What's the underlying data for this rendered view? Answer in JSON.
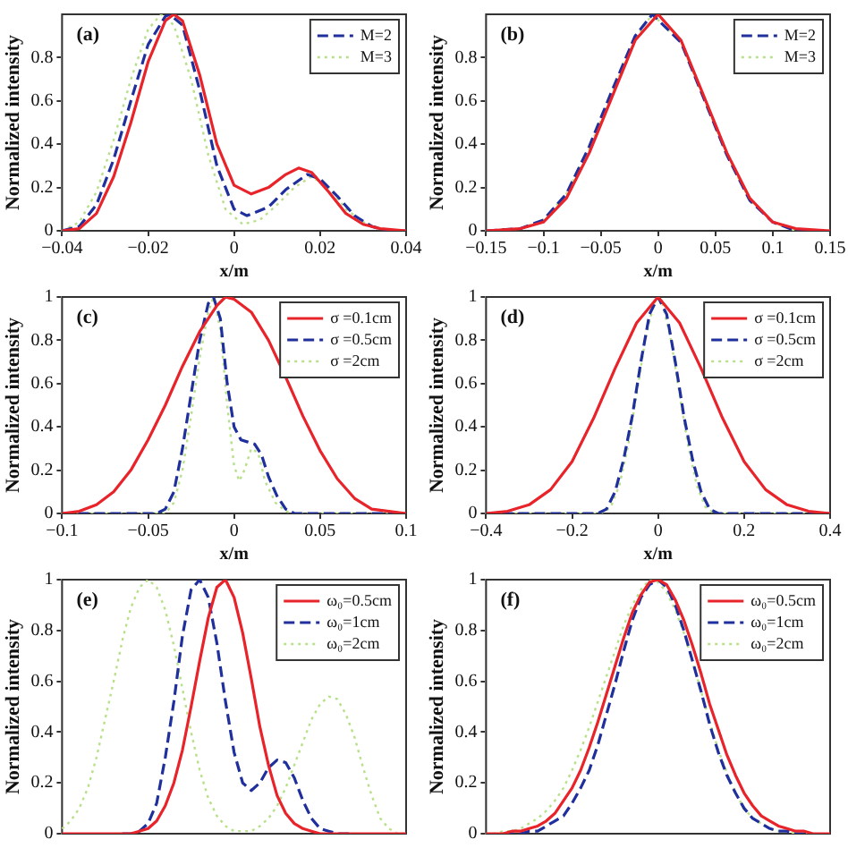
{
  "chart_data": [
    {
      "type": "line",
      "annotations": [
        "(a)"
      ],
      "xlabel": "x/m",
      "ylabel": "Normalized intensity",
      "xlim": [
        -0.04,
        0.04
      ],
      "xticks": [
        -0.04,
        -0.02,
        0,
        0.02,
        0.04
      ],
      "ylim": [
        0,
        1
      ],
      "yticks": [
        0,
        0.2,
        0.4,
        0.6,
        0.8
      ],
      "legend": "top right",
      "series": [
        {
          "color": "#e8232a",
          "line_style": "solid",
          "x": [
            -0.04,
            -0.036,
            -0.032,
            -0.028,
            -0.024,
            -0.02,
            -0.016,
            -0.014,
            -0.012,
            -0.008,
            -0.004,
            0,
            0.004,
            0.008,
            0.012,
            0.015,
            0.018,
            0.022,
            0.026,
            0.03,
            0.034,
            0.04
          ],
          "values": [
            0,
            0.01,
            0.08,
            0.25,
            0.5,
            0.78,
            0.97,
            1,
            0.97,
            0.72,
            0.4,
            0.21,
            0.17,
            0.2,
            0.26,
            0.29,
            0.27,
            0.18,
            0.08,
            0.03,
            0.01,
            0
          ]
        },
        {
          "name": "M=2",
          "color": "#1f2f9c",
          "line_style": "dashed",
          "x": [
            -0.04,
            -0.036,
            -0.032,
            -0.028,
            -0.024,
            -0.02,
            -0.016,
            -0.015,
            -0.012,
            -0.008,
            -0.004,
            0,
            0.003,
            0.008,
            0.012,
            0.017,
            0.02,
            0.024,
            0.028,
            0.032,
            0.036,
            0.04
          ],
          "values": [
            0,
            0.02,
            0.12,
            0.33,
            0.6,
            0.86,
            0.99,
            1,
            0.95,
            0.65,
            0.3,
            0.1,
            0.07,
            0.11,
            0.19,
            0.26,
            0.24,
            0.16,
            0.07,
            0.02,
            0,
            0
          ]
        },
        {
          "name": "M=3",
          "color": "#b8e08a",
          "line_style": "dotted",
          "x": [
            -0.04,
            -0.036,
            -0.032,
            -0.028,
            -0.024,
            -0.02,
            -0.017,
            -0.014,
            -0.01,
            -0.006,
            -0.002,
            0.002,
            0.006,
            0.01,
            0.014,
            0.018,
            0.022,
            0.026,
            0.03,
            0.034,
            0.04
          ],
          "values": [
            0,
            0.04,
            0.18,
            0.42,
            0.7,
            0.93,
            1,
            0.95,
            0.7,
            0.35,
            0.1,
            0.03,
            0.05,
            0.12,
            0.2,
            0.25,
            0.2,
            0.1,
            0.04,
            0.01,
            0
          ]
        }
      ]
    },
    {
      "type": "line",
      "annotations": [
        "(b)"
      ],
      "xlabel": "x/m",
      "ylabel": "Normalized intensity",
      "xlim": [
        -0.15,
        0.15
      ],
      "xticks": [
        -0.15,
        -0.1,
        -0.05,
        0,
        0.05,
        0.1,
        0.15
      ],
      "ylim": [
        0,
        1
      ],
      "yticks": [
        0,
        0.2,
        0.4,
        0.6,
        0.8
      ],
      "legend": "top right",
      "series": [
        {
          "color": "#e8232a",
          "line_style": "solid",
          "x": [
            -0.15,
            -0.12,
            -0.1,
            -0.08,
            -0.06,
            -0.04,
            -0.02,
            0,
            0.02,
            0.04,
            0.06,
            0.08,
            0.1,
            0.12,
            0.15
          ],
          "values": [
            0,
            0.01,
            0.04,
            0.15,
            0.36,
            0.62,
            0.88,
            1,
            0.88,
            0.62,
            0.36,
            0.15,
            0.04,
            0.01,
            0
          ]
        },
        {
          "name": "M=2",
          "color": "#1f2f9c",
          "line_style": "dashed",
          "x": [
            -0.15,
            -0.12,
            -0.1,
            -0.08,
            -0.06,
            -0.04,
            -0.02,
            -0.005,
            0.02,
            0.04,
            0.06,
            0.08,
            0.1,
            0.12,
            0.15
          ],
          "values": [
            0,
            0.01,
            0.05,
            0.17,
            0.39,
            0.65,
            0.9,
            1,
            0.87,
            0.61,
            0.35,
            0.14,
            0.04,
            0,
            0
          ]
        },
        {
          "name": "M=3",
          "color": "#b8e08a",
          "line_style": "dotted",
          "x": [
            -0.15,
            -0.12,
            -0.1,
            -0.08,
            -0.06,
            -0.04,
            -0.02,
            -0.005,
            0.02,
            0.04,
            0.06,
            0.08,
            0.1,
            0.12,
            0.15
          ],
          "values": [
            0,
            0.01,
            0.05,
            0.17,
            0.38,
            0.64,
            0.89,
            1,
            0.87,
            0.61,
            0.35,
            0.14,
            0.04,
            0,
            0
          ]
        }
      ]
    },
    {
      "type": "line",
      "annotations": [
        "(c)"
      ],
      "xlabel": "x/m",
      "ylabel": "Normalized intensity",
      "xlim": [
        -0.1,
        0.1
      ],
      "xticks": [
        -0.1,
        -0.05,
        0,
        0.05,
        0.1
      ],
      "ylim": [
        0,
        1
      ],
      "yticks": [
        0,
        0.2,
        0.4,
        0.6,
        0.8,
        1
      ],
      "legend": "top right",
      "series": [
        {
          "name": "σ =0.1cm",
          "color": "#e8232a",
          "line_style": "solid",
          "x": [
            -0.1,
            -0.09,
            -0.08,
            -0.07,
            -0.06,
            -0.05,
            -0.04,
            -0.03,
            -0.02,
            -0.01,
            -0.005,
            0,
            0.01,
            0.02,
            0.03,
            0.04,
            0.05,
            0.06,
            0.07,
            0.08,
            0.09,
            0.1
          ],
          "values": [
            0,
            0.01,
            0.04,
            0.1,
            0.2,
            0.34,
            0.5,
            0.68,
            0.84,
            0.96,
            1,
            0.99,
            0.93,
            0.8,
            0.63,
            0.45,
            0.29,
            0.16,
            0.07,
            0.02,
            0.01,
            0
          ]
        },
        {
          "name": "σ =0.5cm",
          "color": "#1f2f9c",
          "line_style": "dashed",
          "x": [
            -0.1,
            -0.045,
            -0.04,
            -0.035,
            -0.03,
            -0.025,
            -0.02,
            -0.015,
            -0.012,
            -0.008,
            -0.004,
            0,
            0.004,
            0.008,
            0.012,
            0.016,
            0.02,
            0.025,
            0.03,
            0.035,
            0.1
          ],
          "values": [
            0,
            0,
            0.02,
            0.1,
            0.3,
            0.55,
            0.8,
            0.97,
            1,
            0.9,
            0.6,
            0.4,
            0.34,
            0.33,
            0.32,
            0.27,
            0.17,
            0.08,
            0.02,
            0,
            0
          ]
        },
        {
          "name": "σ =2cm",
          "color": "#b8e08a",
          "line_style": "dotted",
          "x": [
            -0.1,
            -0.04,
            -0.035,
            -0.03,
            -0.025,
            -0.02,
            -0.015,
            -0.012,
            -0.008,
            -0.004,
            0,
            0.003,
            0.006,
            0.01,
            0.014,
            0.018,
            0.024,
            0.03,
            0.035,
            0.1
          ],
          "values": [
            0,
            0,
            0.05,
            0.2,
            0.45,
            0.72,
            0.93,
            1,
            0.85,
            0.5,
            0.22,
            0.15,
            0.2,
            0.3,
            0.28,
            0.15,
            0.05,
            0.01,
            0,
            0
          ]
        }
      ]
    },
    {
      "type": "line",
      "annotations": [
        "(d)"
      ],
      "xlabel": "x/m",
      "ylabel": "Normalized intensity",
      "xlim": [
        -0.4,
        0.4
      ],
      "xticks": [
        -0.4,
        -0.2,
        0,
        0.2,
        0.4
      ],
      "ylim": [
        0,
        1
      ],
      "yticks": [
        0,
        0.2,
        0.4,
        0.6,
        0.8,
        1
      ],
      "legend": "top right",
      "series": [
        {
          "name": "σ =0.1cm",
          "color": "#e8232a",
          "line_style": "solid",
          "x": [
            -0.4,
            -0.35,
            -0.3,
            -0.25,
            -0.2,
            -0.15,
            -0.1,
            -0.05,
            0,
            0.05,
            0.1,
            0.15,
            0.2,
            0.25,
            0.3,
            0.35,
            0.4
          ],
          "values": [
            0,
            0.01,
            0.04,
            0.11,
            0.24,
            0.44,
            0.67,
            0.88,
            1,
            0.88,
            0.67,
            0.44,
            0.24,
            0.11,
            0.04,
            0.01,
            0
          ]
        },
        {
          "name": "σ =0.5cm",
          "color": "#1f2f9c",
          "line_style": "dashed",
          "x": [
            -0.4,
            -0.14,
            -0.12,
            -0.1,
            -0.08,
            -0.06,
            -0.04,
            -0.02,
            0,
            0.02,
            0.04,
            0.06,
            0.08,
            0.1,
            0.12,
            0.14,
            0.4
          ],
          "values": [
            0,
            0,
            0.02,
            0.1,
            0.25,
            0.45,
            0.7,
            0.92,
            1,
            0.92,
            0.7,
            0.45,
            0.25,
            0.1,
            0.02,
            0,
            0
          ]
        },
        {
          "name": "σ =2cm",
          "color": "#b8e08a",
          "line_style": "dotted",
          "x": [
            -0.4,
            -0.13,
            -0.11,
            -0.09,
            -0.07,
            -0.05,
            -0.03,
            -0.01,
            0,
            0.01,
            0.03,
            0.05,
            0.07,
            0.09,
            0.11,
            0.13,
            0.4
          ],
          "values": [
            0,
            0,
            0.03,
            0.13,
            0.31,
            0.55,
            0.8,
            0.97,
            1,
            0.97,
            0.8,
            0.55,
            0.31,
            0.13,
            0.03,
            0,
            0
          ]
        }
      ]
    },
    {
      "type": "line",
      "annotations": [
        "(e)"
      ],
      "ylabel": "Normalized intensity",
      "tick_labels": "y",
      "ylim": [
        0,
        1
      ],
      "yticks": [
        0,
        0.2,
        0.4,
        0.6,
        0.8,
        1
      ],
      "legend": "top right",
      "categories": [
        null,
        null,
        null,
        null,
        null,
        null,
        null,
        null,
        null,
        null,
        null,
        null,
        null,
        null,
        null,
        null,
        null,
        null,
        null,
        null,
        null,
        null,
        null,
        null,
        null,
        null,
        null,
        null,
        null,
        null,
        null,
        null,
        null,
        null,
        null,
        null,
        null,
        null,
        null,
        null,
        null
      ],
      "series": [
        {
          "name": "ω₀=0.5cm",
          "color": "#e8232a",
          "line_style": "solid",
          "values": [
            0,
            0,
            0,
            0,
            0,
            0,
            0,
            0,
            0,
            0.01,
            0.02,
            0.05,
            0.11,
            0.2,
            0.33,
            0.5,
            0.68,
            0.85,
            0.97,
            1,
            0.93,
            0.79,
            0.61,
            0.42,
            0.27,
            0.15,
            0.08,
            0.04,
            0.02,
            0.01,
            0,
            0,
            0,
            0,
            0,
            0,
            0,
            0,
            0,
            0,
            0
          ]
        },
        {
          "name": "ω₀=1cm",
          "color": "#1f2f9c",
          "line_style": "dashed",
          "values": [
            null,
            null,
            null,
            null,
            null,
            null,
            null,
            0,
            0,
            0.01,
            0.04,
            0.12,
            0.3,
            0.52,
            0.78,
            0.96,
            1,
            0.93,
            0.75,
            0.52,
            0.32,
            0.2,
            0.17,
            0.2,
            0.26,
            0.29,
            0.28,
            0.22,
            0.13,
            0.06,
            0.02,
            0.01,
            0,
            0,
            0,
            null,
            null,
            null,
            null,
            null,
            null
          ]
        },
        {
          "name": "ω₀=2cm",
          "color": "#b8e08a",
          "line_style": "dotted",
          "values": [
            0.02,
            0.05,
            0.1,
            0.18,
            0.3,
            0.45,
            0.6,
            0.76,
            0.89,
            0.97,
            1,
            0.97,
            0.88,
            0.74,
            0.57,
            0.4,
            0.25,
            0.14,
            0.07,
            0.03,
            0.01,
            0.01,
            0.01,
            0.03,
            0.06,
            0.11,
            0.18,
            0.27,
            0.36,
            0.45,
            0.51,
            0.54,
            0.53,
            0.47,
            0.38,
            0.26,
            0.15,
            0.06,
            0.02,
            0,
            0
          ]
        }
      ]
    },
    {
      "type": "line",
      "annotations": [
        "(f)"
      ],
      "ylabel": "Normalized intensity",
      "tick_labels": "y",
      "ylim": [
        0,
        1
      ],
      "yticks": [
        0,
        0.2,
        0.4,
        0.6,
        0.8,
        1
      ],
      "legend": "top right",
      "categories": [
        null,
        null,
        null,
        null,
        null,
        null,
        null,
        null,
        null,
        null,
        null,
        null,
        null,
        null,
        null,
        null,
        null,
        null,
        null,
        null,
        null,
        null,
        null,
        null,
        null,
        null,
        null,
        null,
        null,
        null,
        null,
        null,
        null,
        null,
        null,
        null,
        null,
        null,
        null,
        null,
        null
      ],
      "series": [
        {
          "name": "ω₀=0.5cm",
          "color": "#e8232a",
          "line_style": "solid",
          "values": [
            0,
            0,
            0,
            0.01,
            0.01,
            0.02,
            0.03,
            0.05,
            0.08,
            0.13,
            0.18,
            0.25,
            0.34,
            0.44,
            0.55,
            0.66,
            0.77,
            0.87,
            0.94,
            0.99,
            1,
            0.98,
            0.92,
            0.84,
            0.74,
            0.63,
            0.51,
            0.41,
            0.31,
            0.23,
            0.16,
            0.11,
            0.07,
            0.05,
            0.03,
            0.02,
            0.01,
            0.01,
            0,
            0,
            0
          ]
        },
        {
          "name": "ω₀=1cm",
          "color": "#1f2f9c",
          "line_style": "dashed",
          "values": [
            null,
            null,
            0,
            0,
            0,
            0.01,
            0.01,
            0.03,
            0.05,
            0.07,
            0.12,
            0.18,
            0.25,
            0.35,
            0.47,
            0.59,
            0.72,
            0.84,
            0.93,
            0.98,
            1,
            0.97,
            0.9,
            0.8,
            0.68,
            0.56,
            0.43,
            0.32,
            0.23,
            0.16,
            0.1,
            0.06,
            0.04,
            0.02,
            0.01,
            0.01,
            0,
            0,
            null,
            null,
            null
          ]
        },
        {
          "name": "ω₀=2cm",
          "color": "#b8e08a",
          "line_style": "dotted",
          "values": [
            0,
            0,
            0.01,
            0.01,
            0.02,
            0.04,
            0.06,
            0.09,
            0.13,
            0.18,
            0.25,
            0.33,
            0.42,
            0.52,
            0.62,
            0.72,
            0.82,
            0.9,
            0.96,
            1,
            0.99,
            0.95,
            0.88,
            0.79,
            0.68,
            0.56,
            0.44,
            0.33,
            0.24,
            0.16,
            0.1,
            0.06,
            0.04,
            0.02,
            0.01,
            0.01,
            0,
            0,
            0,
            null,
            null
          ]
        }
      ]
    }
  ]
}
